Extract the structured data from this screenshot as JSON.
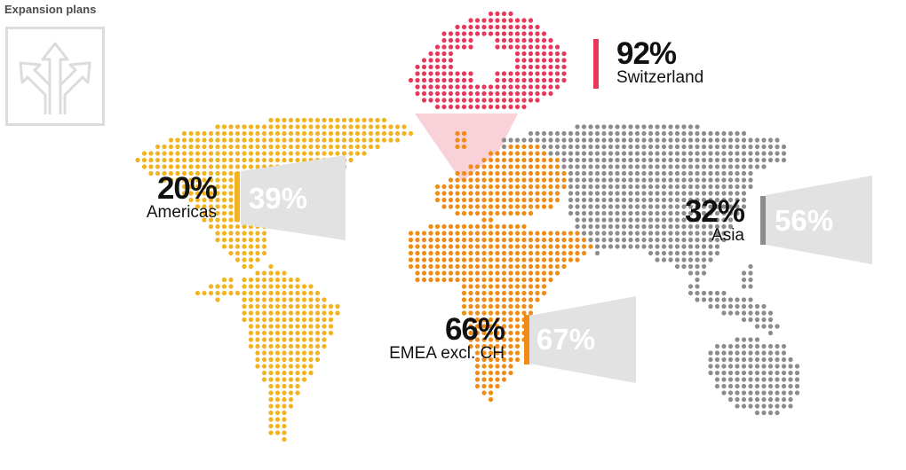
{
  "title": "Expansion plans",
  "logo_icon": "diverging-arrows-icon",
  "regions": {
    "switzerland": {
      "name": "Switzerland",
      "pct": "92%",
      "color": "#e8375a"
    },
    "americas": {
      "name": "Americas",
      "pct": "20%",
      "future": "39%",
      "color": "#f2b31f"
    },
    "emea": {
      "name": "EMEA excl. CH",
      "pct": "66%",
      "future": "67%",
      "color": "#f08c15"
    },
    "asia": {
      "name": "Asia",
      "pct": "32%",
      "future": "56%",
      "color": "#8c8c8c"
    }
  },
  "colors": {
    "cone": "#e2e2e2",
    "swiss_highlight": "#f8c5cf",
    "logo": "#dcdcdc"
  }
}
